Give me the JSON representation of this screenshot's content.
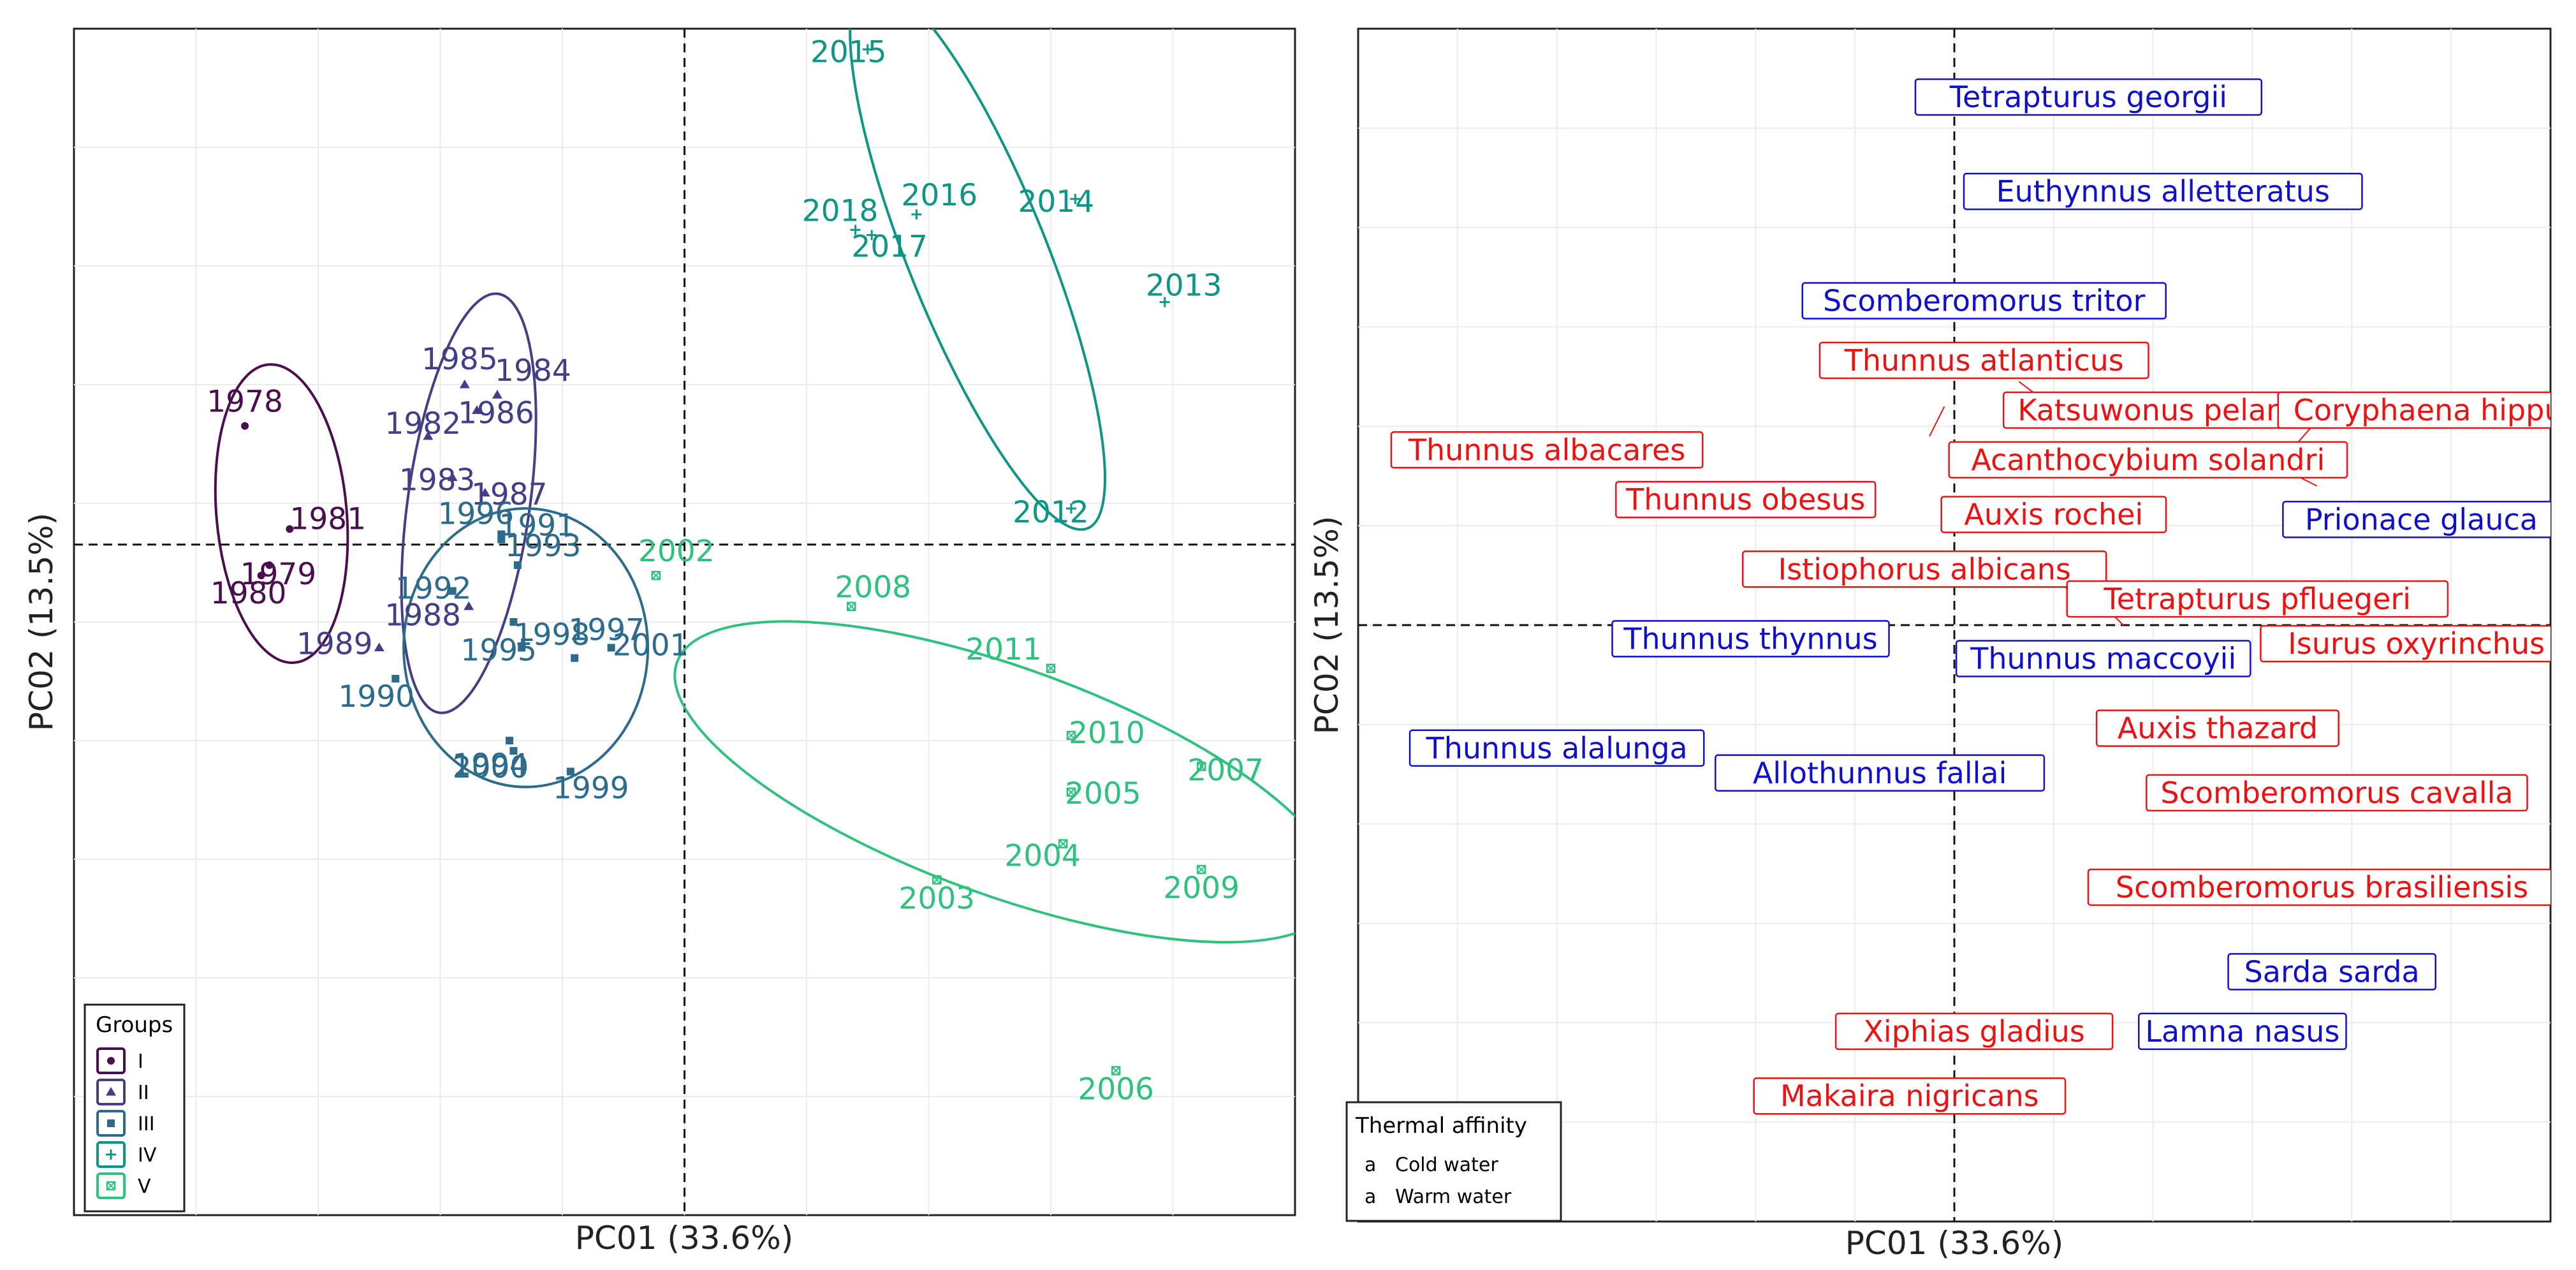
{
  "chart_data": [
    {
      "type": "scatter",
      "title": "",
      "xlabel": "PC01 (33.6%)",
      "ylabel": "PC02 (13.5%)",
      "xlim": [
        -1.5,
        1.5
      ],
      "ylim": [
        -1.3,
        1.0
      ],
      "grid": true,
      "reference_lines": {
        "x": 0,
        "y": 0
      },
      "legend": {
        "title": "Groups",
        "position": "bottom-left"
      },
      "groups": [
        {
          "name": "I",
          "color": "#4a0e4e",
          "marker": "circle",
          "points": [
            {
              "label": "1978",
              "x": -1.08,
              "y": 0.23
            },
            {
              "label": "1979",
              "x": -1.02,
              "y": -0.04
            },
            {
              "label": "1980",
              "x": -1.04,
              "y": -0.06
            },
            {
              "label": "1981",
              "x": -0.97,
              "y": 0.03
            }
          ],
          "ellipse": {
            "cx": -0.99,
            "cy": 0.06,
            "rx": 0.16,
            "ry": 0.29,
            "angle": -5
          }
        },
        {
          "name": "II",
          "color": "#433e85",
          "marker": "triangle",
          "points": [
            {
              "label": "1982",
              "x": -0.63,
              "y": 0.21
            },
            {
              "label": "1983",
              "x": -0.57,
              "y": 0.13
            },
            {
              "label": "1984",
              "x": -0.46,
              "y": 0.29
            },
            {
              "label": "1985",
              "x": -0.54,
              "y": 0.31
            },
            {
              "label": "1986",
              "x": -0.51,
              "y": 0.26
            },
            {
              "label": "1987",
              "x": -0.49,
              "y": 0.1
            },
            {
              "label": "1988",
              "x": -0.53,
              "y": -0.12
            },
            {
              "label": "1989",
              "x": -0.75,
              "y": -0.2
            }
          ],
          "ellipse": {
            "cx": -0.53,
            "cy": 0.08,
            "rx": 0.15,
            "ry": 0.41,
            "angle": 8
          }
        },
        {
          "name": "III",
          "color": "#2c6b8c",
          "marker": "square",
          "points": [
            {
              "label": "1990",
              "x": -0.71,
              "y": -0.26
            },
            {
              "label": "1991",
              "x": -0.45,
              "y": 0.01
            },
            {
              "label": "1992",
              "x": -0.57,
              "y": -0.09
            },
            {
              "label": "1993",
              "x": -0.41,
              "y": -0.04
            },
            {
              "label": "1994",
              "x": -0.43,
              "y": -0.38
            },
            {
              "label": "1995",
              "x": -0.4,
              "y": -0.2
            },
            {
              "label": "1996",
              "x": -0.45,
              "y": 0.02
            },
            {
              "label": "1997",
              "x": -0.27,
              "y": -0.22
            },
            {
              "label": "1998",
              "x": -0.42,
              "y": -0.15
            },
            {
              "label": "1999",
              "x": -0.28,
              "y": -0.44
            },
            {
              "label": "2000",
              "x": -0.42,
              "y": -0.4
            },
            {
              "label": "2001",
              "x": -0.18,
              "y": -0.2
            }
          ],
          "ellipse": {
            "cx": -0.39,
            "cy": -0.2,
            "rx": 0.3,
            "ry": 0.27,
            "angle": 0
          }
        },
        {
          "name": "IV",
          "color": "#0e9685",
          "marker": "plus",
          "points": [
            {
              "label": "2012",
              "x": 0.95,
              "y": 0.07
            },
            {
              "label": "2013",
              "x": 1.18,
              "y": 0.47
            },
            {
              "label": "2014",
              "x": 0.96,
              "y": 0.67
            },
            {
              "label": "2015",
              "x": 0.45,
              "y": 0.96
            },
            {
              "label": "2016",
              "x": 0.57,
              "y": 0.64
            },
            {
              "label": "2017",
              "x": 0.46,
              "y": 0.6
            },
            {
              "label": "2018",
              "x": 0.42,
              "y": 0.61
            }
          ],
          "ellipse": {
            "cx": 0.72,
            "cy": 0.56,
            "rx": 0.17,
            "ry": 0.57,
            "angle": -22
          }
        },
        {
          "name": "V",
          "color": "#2ec27e",
          "marker": "boxed-x",
          "points": [
            {
              "label": "2002",
              "x": -0.07,
              "y": -0.06
            },
            {
              "label": "2003",
              "x": 0.62,
              "y": -0.65
            },
            {
              "label": "2004",
              "x": 0.93,
              "y": -0.58
            },
            {
              "label": "2005",
              "x": 0.95,
              "y": -0.48
            },
            {
              "label": "2006",
              "x": 1.06,
              "y": -1.02
            },
            {
              "label": "2007",
              "x": 1.27,
              "y": -0.43
            },
            {
              "label": "2008",
              "x": 0.41,
              "y": -0.12
            },
            {
              "label": "2009",
              "x": 1.27,
              "y": -0.63
            },
            {
              "label": "2010",
              "x": 0.95,
              "y": -0.37
            },
            {
              "label": "2011",
              "x": 0.9,
              "y": -0.24
            }
          ],
          "ellipse": {
            "cx": 0.79,
            "cy": -0.46,
            "rx": 0.86,
            "ry": 0.22,
            "angle": 20
          }
        }
      ]
    },
    {
      "type": "scatter",
      "title": "",
      "xlabel": "PC01 (33.6%)",
      "ylabel": "PC02 (13.5%)",
      "xlim": [
        -1.2,
        1.2
      ],
      "ylim": [
        -1.2,
        1.2
      ],
      "grid": true,
      "reference_lines": {
        "x": 0,
        "y": 0
      },
      "legend": {
        "title": "Thermal affinity",
        "position": "bottom-left",
        "entries": [
          {
            "label": "Cold water",
            "color": "#1010cc",
            "symbol": "a"
          },
          {
            "label": "Warm water",
            "color": "#ee1111",
            "symbol": "a"
          }
        ]
      },
      "species": [
        {
          "label": "Tetrapturus georgii",
          "x": 0.27,
          "y": 1.06,
          "affinity": "Cold water"
        },
        {
          "label": "Euthynnus alletteratus",
          "x": 0.42,
          "y": 0.87,
          "affinity": "Cold water"
        },
        {
          "label": "Scomberomorus tritor",
          "x": 0.06,
          "y": 0.65,
          "affinity": "Cold water"
        },
        {
          "label": "Thunnus atlanticus",
          "x": 0.06,
          "y": 0.53,
          "affinity": "Warm water"
        },
        {
          "label": "Katsuwonus pelamis",
          "x": 0.43,
          "y": 0.43,
          "affinity": "Warm water"
        },
        {
          "label": "Coryphaena hippurus",
          "x": 1.0,
          "y": 0.43,
          "affinity": "Warm water"
        },
        {
          "label": "Thunnus albacares",
          "x": -0.82,
          "y": 0.35,
          "affinity": "Warm water"
        },
        {
          "label": "Acanthocybium solandri",
          "x": 0.39,
          "y": 0.33,
          "affinity": "Warm water"
        },
        {
          "label": "Thunnus obesus",
          "x": -0.42,
          "y": 0.25,
          "affinity": "Warm water"
        },
        {
          "label": "Auxis rochei",
          "x": 0.2,
          "y": 0.22,
          "affinity": "Warm water"
        },
        {
          "label": "Prionace glauca",
          "x": 0.94,
          "y": 0.21,
          "affinity": "Cold water"
        },
        {
          "label": "Istiophorus albicans",
          "x": -0.06,
          "y": 0.11,
          "affinity": "Warm water"
        },
        {
          "label": "Tetrapturus pfluegeri",
          "x": 0.61,
          "y": 0.05,
          "affinity": "Warm water"
        },
        {
          "label": "Thunnus thynnus",
          "x": -0.41,
          "y": -0.03,
          "affinity": "Cold water"
        },
        {
          "label": "Thunnus maccoyii",
          "x": 0.3,
          "y": -0.07,
          "affinity": "Cold water"
        },
        {
          "label": "Isurus oxyrinchus",
          "x": 0.93,
          "y": -0.04,
          "affinity": "Warm water"
        },
        {
          "label": "Auxis thazard",
          "x": 0.53,
          "y": -0.21,
          "affinity": "Warm water"
        },
        {
          "label": "Thunnus alalunga",
          "x": -0.8,
          "y": -0.25,
          "affinity": "Cold water"
        },
        {
          "label": "Allothunnus fallai",
          "x": -0.15,
          "y": -0.3,
          "affinity": "Cold water"
        },
        {
          "label": "Scomberomorus cavalla",
          "x": 0.77,
          "y": -0.34,
          "affinity": "Warm water"
        },
        {
          "label": "Scomberomorus brasiliensis",
          "x": 0.74,
          "y": -0.53,
          "affinity": "Warm water"
        },
        {
          "label": "Sarda sarda",
          "x": 0.76,
          "y": -0.7,
          "affinity": "Cold water"
        },
        {
          "label": "Lamna nasus",
          "x": 0.58,
          "y": -0.82,
          "affinity": "Cold water"
        },
        {
          "label": "Xiphias gladius",
          "x": 0.04,
          "y": -0.82,
          "affinity": "Warm water"
        },
        {
          "label": "Makaira nigricans",
          "x": -0.09,
          "y": -0.95,
          "affinity": "Warm water"
        }
      ]
    }
  ]
}
